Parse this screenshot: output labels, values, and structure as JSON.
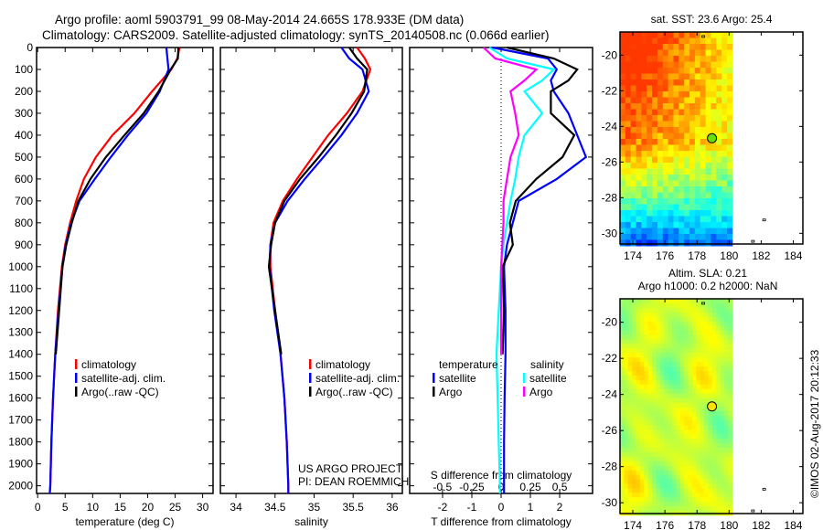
{
  "title": {
    "line1": "Argo profile: aoml 5903791_99 08-May-2014 24.665S 178.933E (DM data)",
    "line2": "Climatology: CARS2009. Satellite-adjusted climatology: synTS_20140508.nc (0.066d earlier)"
  },
  "credits": {
    "project": "US ARGO PROJECT",
    "pi": "PI: DEAN ROEMMICH",
    "watermark": "©IMOS 02-Aug-2017 20:12:33"
  },
  "colors": {
    "climatology": "#ff0000",
    "satellite": "#0000ff",
    "argo": "#000000",
    "s_satellite": "#00ffff",
    "s_argo": "#ff00ff"
  },
  "chart_data": [
    {
      "type": "line",
      "name": "temperature",
      "xlabel": "temperature (deg C)",
      "xlim": [
        -0.2,
        31.9
      ],
      "ylim": [
        2035,
        0
      ],
      "xticks": [
        0,
        5,
        10,
        15,
        20,
        25,
        30
      ],
      "yticks": [
        0,
        100,
        200,
        300,
        400,
        500,
        600,
        700,
        800,
        900,
        1000,
        1100,
        1200,
        1300,
        1400,
        1500,
        1600,
        1700,
        1800,
        1900,
        2000
      ],
      "legend": [
        "climatology",
        "satellite-adj. clim.",
        "Argo(..raw -QC)"
      ],
      "depth": [
        0,
        50,
        100,
        200,
        300,
        400,
        500,
        600,
        700,
        800,
        900,
        1000,
        1200,
        1400,
        1600,
        1800,
        2000,
        2035
      ],
      "series": [
        {
          "name": "climatology",
          "values": [
            25.8,
            25.4,
            24.3,
            20.8,
            17.6,
            13.6,
            10.6,
            8.4,
            7.0,
            5.9,
            5.0,
            4.4,
            3.7,
            3.2,
            2.8,
            2.5,
            2.3,
            2.2
          ]
        },
        {
          "name": "satellite-adj. clim.",
          "values": [
            23.4,
            23.6,
            23.8,
            22.2,
            19.8,
            16.4,
            13.3,
            10.4,
            7.6,
            6.1,
            5.1,
            4.5,
            3.8,
            3.2,
            2.8,
            2.5,
            2.3,
            2.2
          ]
        },
        {
          "name": "Argo(..raw -QC)",
          "values": [
            25.6,
            25.5,
            24.2,
            22.0,
            19.3,
            15.8,
            12.4,
            9.6,
            7.4,
            6.2,
            5.2,
            4.5,
            3.9,
            3.3,
            null,
            null,
            null,
            null
          ]
        }
      ]
    },
    {
      "type": "line",
      "name": "salinity",
      "xlabel": "salinity",
      "xlim": [
        33.8,
        36.13
      ],
      "ylim": [
        2035,
        0
      ],
      "xticks": [
        34,
        34.5,
        35,
        35.5,
        36
      ],
      "legend": [
        "climatology",
        "satellite-adj. clim.",
        "Argo(..raw -QC)"
      ],
      "depth": [
        0,
        50,
        100,
        200,
        300,
        400,
        500,
        600,
        700,
        800,
        900,
        1000,
        1200,
        1400,
        1600,
        1800,
        2000,
        2035
      ],
      "series": [
        {
          "name": "climatology",
          "values": [
            35.55,
            35.65,
            35.72,
            35.62,
            35.42,
            35.18,
            34.98,
            34.78,
            34.6,
            34.48,
            34.44,
            34.44,
            34.5,
            34.57,
            34.62,
            34.65,
            34.67,
            34.67
          ]
        },
        {
          "name": "satellite-adj. clim.",
          "values": [
            35.35,
            35.45,
            35.62,
            35.7,
            35.55,
            35.35,
            35.12,
            34.88,
            34.66,
            34.5,
            34.44,
            34.43,
            34.49,
            34.57,
            34.62,
            34.65,
            34.67,
            34.67
          ]
        },
        {
          "name": "Argo(..raw -QC)",
          "values": [
            35.45,
            35.55,
            35.68,
            35.64,
            35.48,
            35.28,
            35.06,
            34.82,
            34.62,
            34.5,
            34.45,
            34.42,
            34.5,
            34.58,
            null,
            null,
            null,
            null
          ]
        }
      ]
    },
    {
      "type": "line",
      "name": "differences",
      "xlabel": "T difference from climatology",
      "x2label": "S difference from climatology",
      "xlim": [
        -3.125,
        3.125
      ],
      "x2lim": [
        -0.78,
        0.78
      ],
      "ylim": [
        2035,
        0
      ],
      "xticks": [
        -2,
        -1,
        0,
        1,
        2
      ],
      "x2ticks": [
        -0.5,
        -0.25,
        0,
        0.25,
        0.5
      ],
      "x2ticklabels": [
        "-0.5",
        "-0.25",
        "0",
        "0.25",
        "0.5"
      ],
      "legend": {
        "t_heading": "temperature",
        "s_heading": "salinity",
        "t_items": [
          "satellite",
          "Argo"
        ],
        "s_items": [
          "satellite",
          "Argo"
        ]
      },
      "depth": [
        0,
        50,
        100,
        150,
        200,
        300,
        400,
        500,
        600,
        700,
        800,
        900,
        1000,
        1200,
        1400,
        1600,
        1800,
        2000,
        2035
      ],
      "series": [
        {
          "name": "T satellite",
          "axis": "T",
          "values": [
            -0.3,
            1.6,
            1.9,
            1.7,
            1.8,
            2.3,
            2.6,
            2.9,
            1.9,
            0.6,
            0.4,
            0.2,
            0.1,
            0.15,
            0.15,
            0.12,
            0.1,
            0.1,
            0.1
          ]
        },
        {
          "name": "T Argo",
          "axis": "T",
          "values": [
            0.2,
            1.8,
            2.6,
            2.3,
            1.7,
            1.7,
            2.5,
            2.1,
            1.2,
            0.5,
            0.3,
            0.4,
            0.05,
            0.1,
            0.05,
            null,
            null,
            null,
            null
          ]
        },
        {
          "name": "S satellite",
          "axis": "S",
          "values": [
            -0.1,
            0.05,
            0.45,
            0.35,
            0.2,
            0.35,
            0.2,
            0.15,
            0.12,
            0.08,
            0.05,
            0.02,
            0.0,
            -0.02,
            -0.04,
            -0.03,
            -0.02,
            -0.01,
            -0.01
          ]
        },
        {
          "name": "S Argo",
          "axis": "S",
          "values": [
            -0.15,
            -0.05,
            0.3,
            0.2,
            0.08,
            0.12,
            0.15,
            0.08,
            0.05,
            0.02,
            0.02,
            0.01,
            0.0,
            0.0,
            0.0,
            null,
            null,
            null,
            null
          ]
        }
      ]
    },
    {
      "type": "heatmap",
      "name": "sst-map",
      "title": "sat. SST: 23.6 Argo: 25.4",
      "xlim": [
        173.2,
        184.6
      ],
      "ylim": [
        -30.6,
        -18.7
      ],
      "xticks": [
        174,
        176,
        178,
        180,
        182,
        184
      ],
      "yticks": [
        -20,
        -22,
        -24,
        -26,
        -28,
        -30
      ],
      "data_lon_max": 180.1,
      "float_position": {
        "lon": 178.933,
        "lat": -24.665
      }
    },
    {
      "type": "heatmap",
      "name": "sla-map",
      "title": "Altim. SLA: 0.21",
      "subtitle": "Argo h1000: 0.2 h2000: NaN",
      "xlim": [
        173.2,
        184.6
      ],
      "ylim": [
        -30.6,
        -18.7
      ],
      "xticks": [
        174,
        176,
        178,
        180,
        182,
        184
      ],
      "yticks": [
        -20,
        -22,
        -24,
        -26,
        -28,
        -30
      ],
      "data_lon_max": 180.1,
      "float_position": {
        "lon": 178.933,
        "lat": -24.665
      }
    }
  ]
}
